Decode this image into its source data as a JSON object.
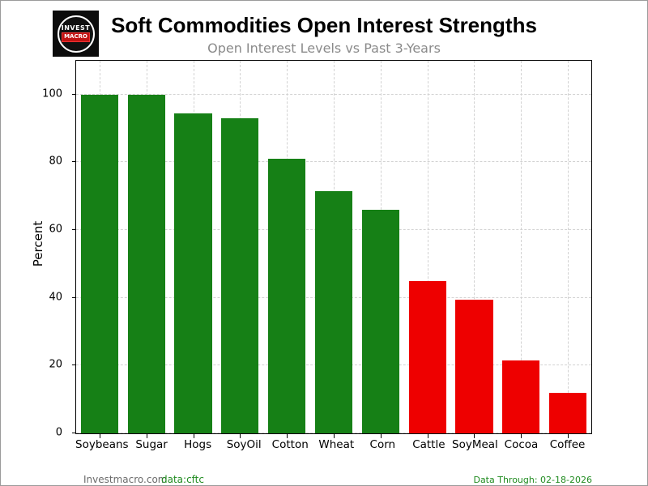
{
  "page": {
    "logo": {
      "line1": "INVEST",
      "line2": "MACRO"
    },
    "footer": {
      "site": "Investmacro.com",
      "source": "data:cftc",
      "data_through": "Data Through: 02-18-2026",
      "green_color": "#1f8b1f"
    }
  },
  "chart_data": {
    "type": "bar",
    "title": "Soft Commodities Open Interest Strengths",
    "subtitle": "Open Interest Levels vs Past 3-Years",
    "xlabel": "",
    "ylabel": "Percent",
    "ylim": [
      0,
      110
    ],
    "yticks": [
      0,
      20,
      40,
      60,
      80,
      100
    ],
    "grid": "dashed-both-axes",
    "legend": "none",
    "categories": [
      "Soybeans",
      "Sugar",
      "Hogs",
      "SoyOil",
      "Cotton",
      "Wheat",
      "Corn",
      "Cattle",
      "SoyMeal",
      "Cocoa",
      "Coffee"
    ],
    "values": [
      100,
      100,
      94.5,
      93,
      81,
      71.5,
      66,
      45,
      39.5,
      21.5,
      12
    ],
    "bar_colors": [
      "#168016",
      "#168016",
      "#168016",
      "#168016",
      "#168016",
      "#168016",
      "#168016",
      "#ee0000",
      "#ee0000",
      "#ee0000",
      "#ee0000"
    ],
    "strong_color": "#168016",
    "weak_color": "#ee0000"
  }
}
